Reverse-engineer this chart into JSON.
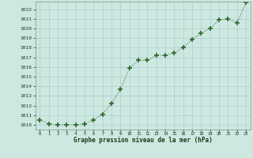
{
  "x": [
    0,
    1,
    2,
    3,
    4,
    5,
    6,
    7,
    8,
    9,
    10,
    11,
    12,
    13,
    14,
    15,
    16,
    17,
    18,
    19,
    20,
    21,
    22,
    23
  ],
  "y": [
    1010.5,
    1010.1,
    1010.0,
    1010.0,
    1010.0,
    1010.1,
    1010.5,
    1011.1,
    1012.2,
    1013.7,
    1015.9,
    1016.7,
    1016.7,
    1017.2,
    1017.2,
    1017.5,
    1018.0,
    1018.9,
    1019.5,
    1020.0,
    1020.9,
    1021.0,
    1020.6,
    1022.7
  ],
  "ylim_min": 1009.5,
  "ylim_max": 1022.8,
  "yticks": [
    1010,
    1011,
    1012,
    1013,
    1014,
    1015,
    1016,
    1017,
    1018,
    1019,
    1020,
    1021,
    1022
  ],
  "xticks": [
    0,
    1,
    2,
    3,
    4,
    5,
    6,
    7,
    8,
    9,
    10,
    11,
    12,
    13,
    14,
    15,
    16,
    17,
    18,
    19,
    20,
    21,
    22,
    23
  ],
  "line_color": "#2d6a2d",
  "marker_color": "#2d6a2d",
  "bg_color": "#cce8e0",
  "grid_color": "#b0cccc",
  "xlabel": "Graphe pression niveau de la mer (hPa)",
  "xlabel_color": "#1a3a1a",
  "tick_color": "#1a3a1a"
}
